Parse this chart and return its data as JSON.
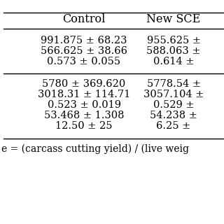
{
  "col_headers": [
    "Control",
    "New SCE"
  ],
  "section1_rows": [
    [
      "991.875 ± 68.23",
      "955.625 ±"
    ],
    [
      "566.625 ± 38.66",
      "588.063 ±"
    ],
    [
      "0.573 ± 0.055",
      "0.614 ±"
    ]
  ],
  "section2_rows": [
    [
      "5780 ± 369.620",
      "5778.54 ±"
    ],
    [
      "3018.31 ± 114.71",
      "3057.104 ±"
    ],
    [
      "0.523 ± 0.019",
      "0.529 ±"
    ],
    [
      "53.468 ± 1.308",
      "54.238 ±"
    ],
    [
      "12.50 ± 25",
      "6.25 ±"
    ]
  ],
  "footnote": "e = (carcass cutting yield) / (live weig",
  "background_color": "#ffffff",
  "text_color": "#000000",
  "line_color": "#000000",
  "header_fontsize": 11.5,
  "data_fontsize": 10.5,
  "footnote_fontsize": 10
}
